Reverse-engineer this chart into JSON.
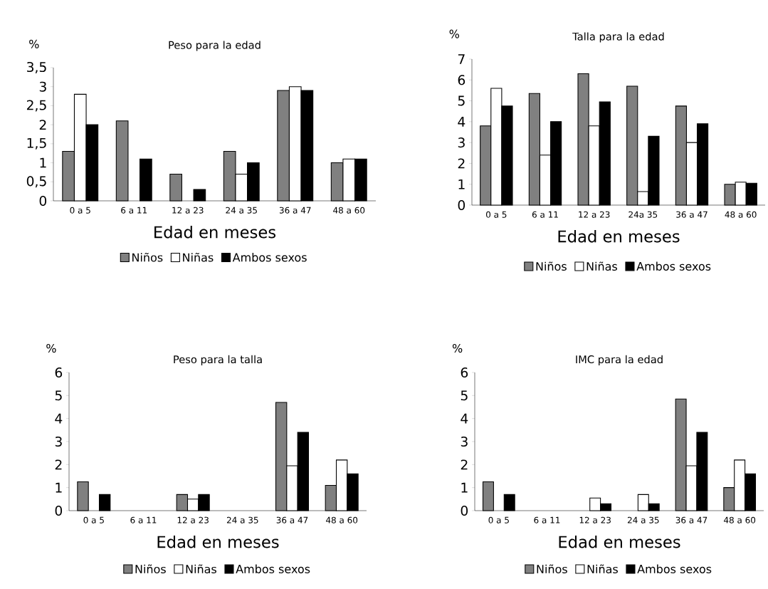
{
  "chart_data": [
    {
      "type": "bar",
      "title": "Peso para la edad",
      "ylabel": "%",
      "xlabel": "Edad en meses",
      "categories": [
        "0 a 5",
        "6  a  11",
        "12  a  23",
        "24   a  35",
        "36  a  47",
        "48 a 60"
      ],
      "series": [
        {
          "name": "Niños",
          "color": "#808080",
          "values": [
            1.3,
            2.1,
            0.7,
            1.3,
            2.9,
            1.0
          ]
        },
        {
          "name": "Niñas",
          "color": "#ffffff",
          "values": [
            2.8,
            0,
            0,
            0.7,
            3.0,
            1.1
          ]
        },
        {
          "name": "Ambos sexos",
          "color": "#000000",
          "values": [
            2.0,
            1.1,
            0.3,
            1.0,
            2.9,
            1.1
          ]
        }
      ],
      "ylim": [
        0,
        3.5
      ],
      "yticks": [
        0,
        {
          "value": 0.5,
          "label": "0,5"
        },
        1,
        {
          "value": 1.5,
          "label": "1,5"
        },
        2,
        {
          "value": 2.5,
          "label": "2,5"
        },
        3,
        {
          "value": 3.5,
          "label": "3,5"
        }
      ],
      "legend": "bottom"
    },
    {
      "type": "bar",
      "title": "Talla para la edad",
      "ylabel": "%",
      "xlabel": "Edad en meses",
      "categories": [
        "0 a 5",
        "6 a 11",
        "12 a 23",
        "24a  35",
        "36 a 47",
        "48 a 60"
      ],
      "series": [
        {
          "name": "Niños",
          "color": "#808080",
          "values": [
            3.8,
            5.35,
            6.3,
            5.7,
            4.75,
            1.0
          ]
        },
        {
          "name": "Niñas",
          "color": "#ffffff",
          "values": [
            5.6,
            2.4,
            3.8,
            0.65,
            3.0,
            1.1
          ]
        },
        {
          "name": "Ambos sexos",
          "color": "#000000",
          "values": [
            4.75,
            4.0,
            4.95,
            3.3,
            3.9,
            1.05
          ]
        }
      ],
      "ylim": [
        0,
        7
      ],
      "yticks": [
        0,
        1,
        2,
        3,
        4,
        5,
        6,
        7
      ],
      "legend": "bottom"
    },
    {
      "type": "bar",
      "title": "Peso para la talla",
      "ylabel": "%",
      "xlabel": "Edad en meses",
      "categories": [
        "0  a  5",
        "6  a  11",
        "12  a  23",
        "24  a  35",
        "36  a  47",
        "48  a  60"
      ],
      "series": [
        {
          "name": "Niños",
          "color": "#808080",
          "values": [
            1.25,
            0,
            0.7,
            0,
            4.7,
            1.1
          ]
        },
        {
          "name": "Niñas",
          "color": "#ffffff",
          "values": [
            0,
            0,
            0.5,
            0,
            1.95,
            2.2
          ]
        },
        {
          "name": "Ambos sexos",
          "color": "#000000",
          "values": [
            0.7,
            0,
            0.7,
            0,
            3.4,
            1.6
          ]
        }
      ],
      "ylim": [
        0,
        6
      ],
      "yticks": [
        0,
        1,
        2,
        3,
        4,
        5,
        6
      ],
      "legend": "bottom"
    },
    {
      "type": "bar",
      "title": "IMC para la edad",
      "ylabel": "%",
      "xlabel": "Edad en meses",
      "categories": [
        "0  a  5",
        "6  a  11",
        "12  a  23",
        "24  a  35",
        "36  a  47",
        "48  a  60"
      ],
      "series": [
        {
          "name": "Niños",
          "color": "#808080",
          "values": [
            1.25,
            0,
            0,
            0,
            4.85,
            1.0
          ]
        },
        {
          "name": "Niñas",
          "color": "#ffffff",
          "values": [
            0,
            0,
            0.55,
            0.7,
            1.95,
            2.2
          ]
        },
        {
          "name": "Ambos sexos",
          "color": "#000000",
          "values": [
            0.7,
            0,
            0.3,
            0.3,
            3.4,
            1.6
          ]
        }
      ],
      "ylim": [
        0,
        6
      ],
      "yticks": [
        0,
        1,
        2,
        3,
        4,
        5,
        6
      ],
      "legend": "bottom"
    }
  ]
}
